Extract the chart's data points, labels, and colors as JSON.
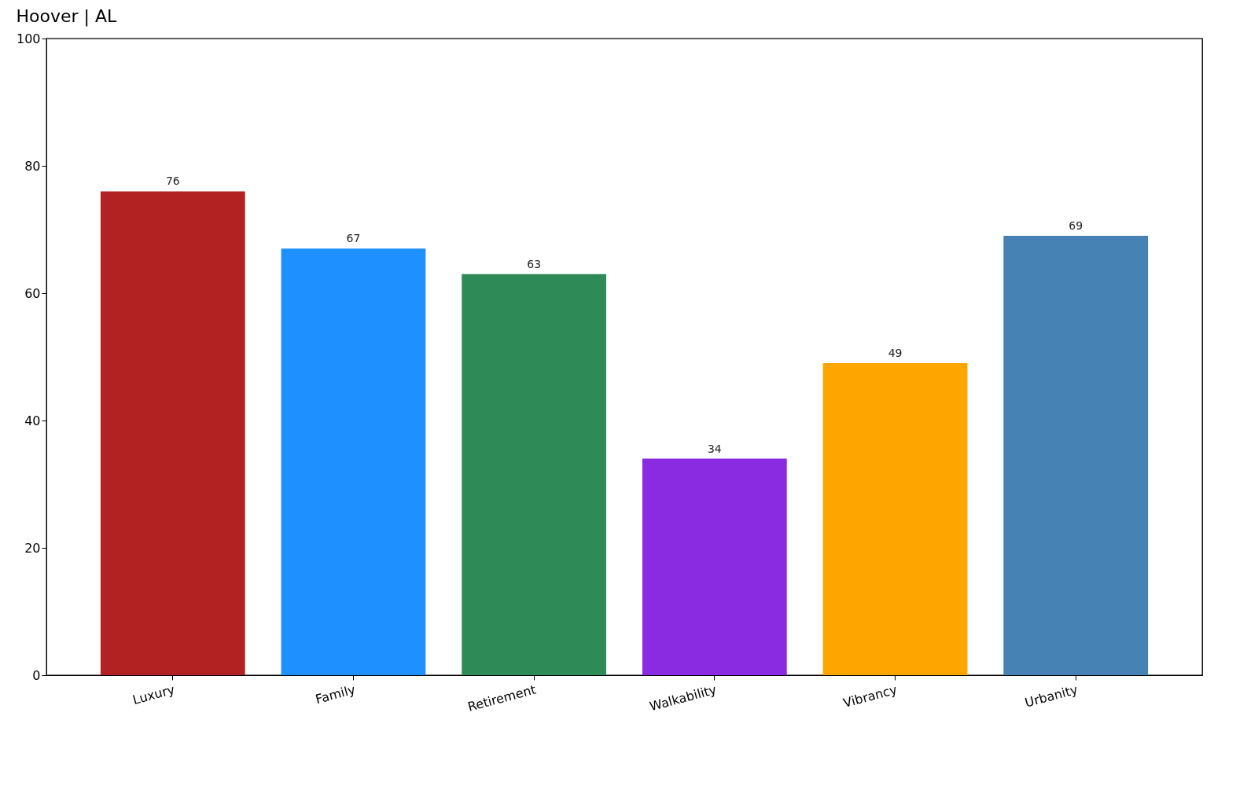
{
  "chart_data": {
    "type": "bar",
    "title": "Hoover | AL",
    "categories": [
      "Luxury",
      "Family",
      "Retirement",
      "Walkability",
      "Vibrancy",
      "Urbanity"
    ],
    "values": [
      76,
      67,
      63,
      34,
      49,
      69
    ],
    "colors": [
      "#b22222",
      "#1e90ff",
      "#2e8b57",
      "#8a2be2",
      "#ffa500",
      "#4682b4"
    ],
    "ylim": [
      0,
      100
    ],
    "yticks": [
      0,
      20,
      40,
      60,
      80,
      100
    ],
    "data_labels": true
  }
}
